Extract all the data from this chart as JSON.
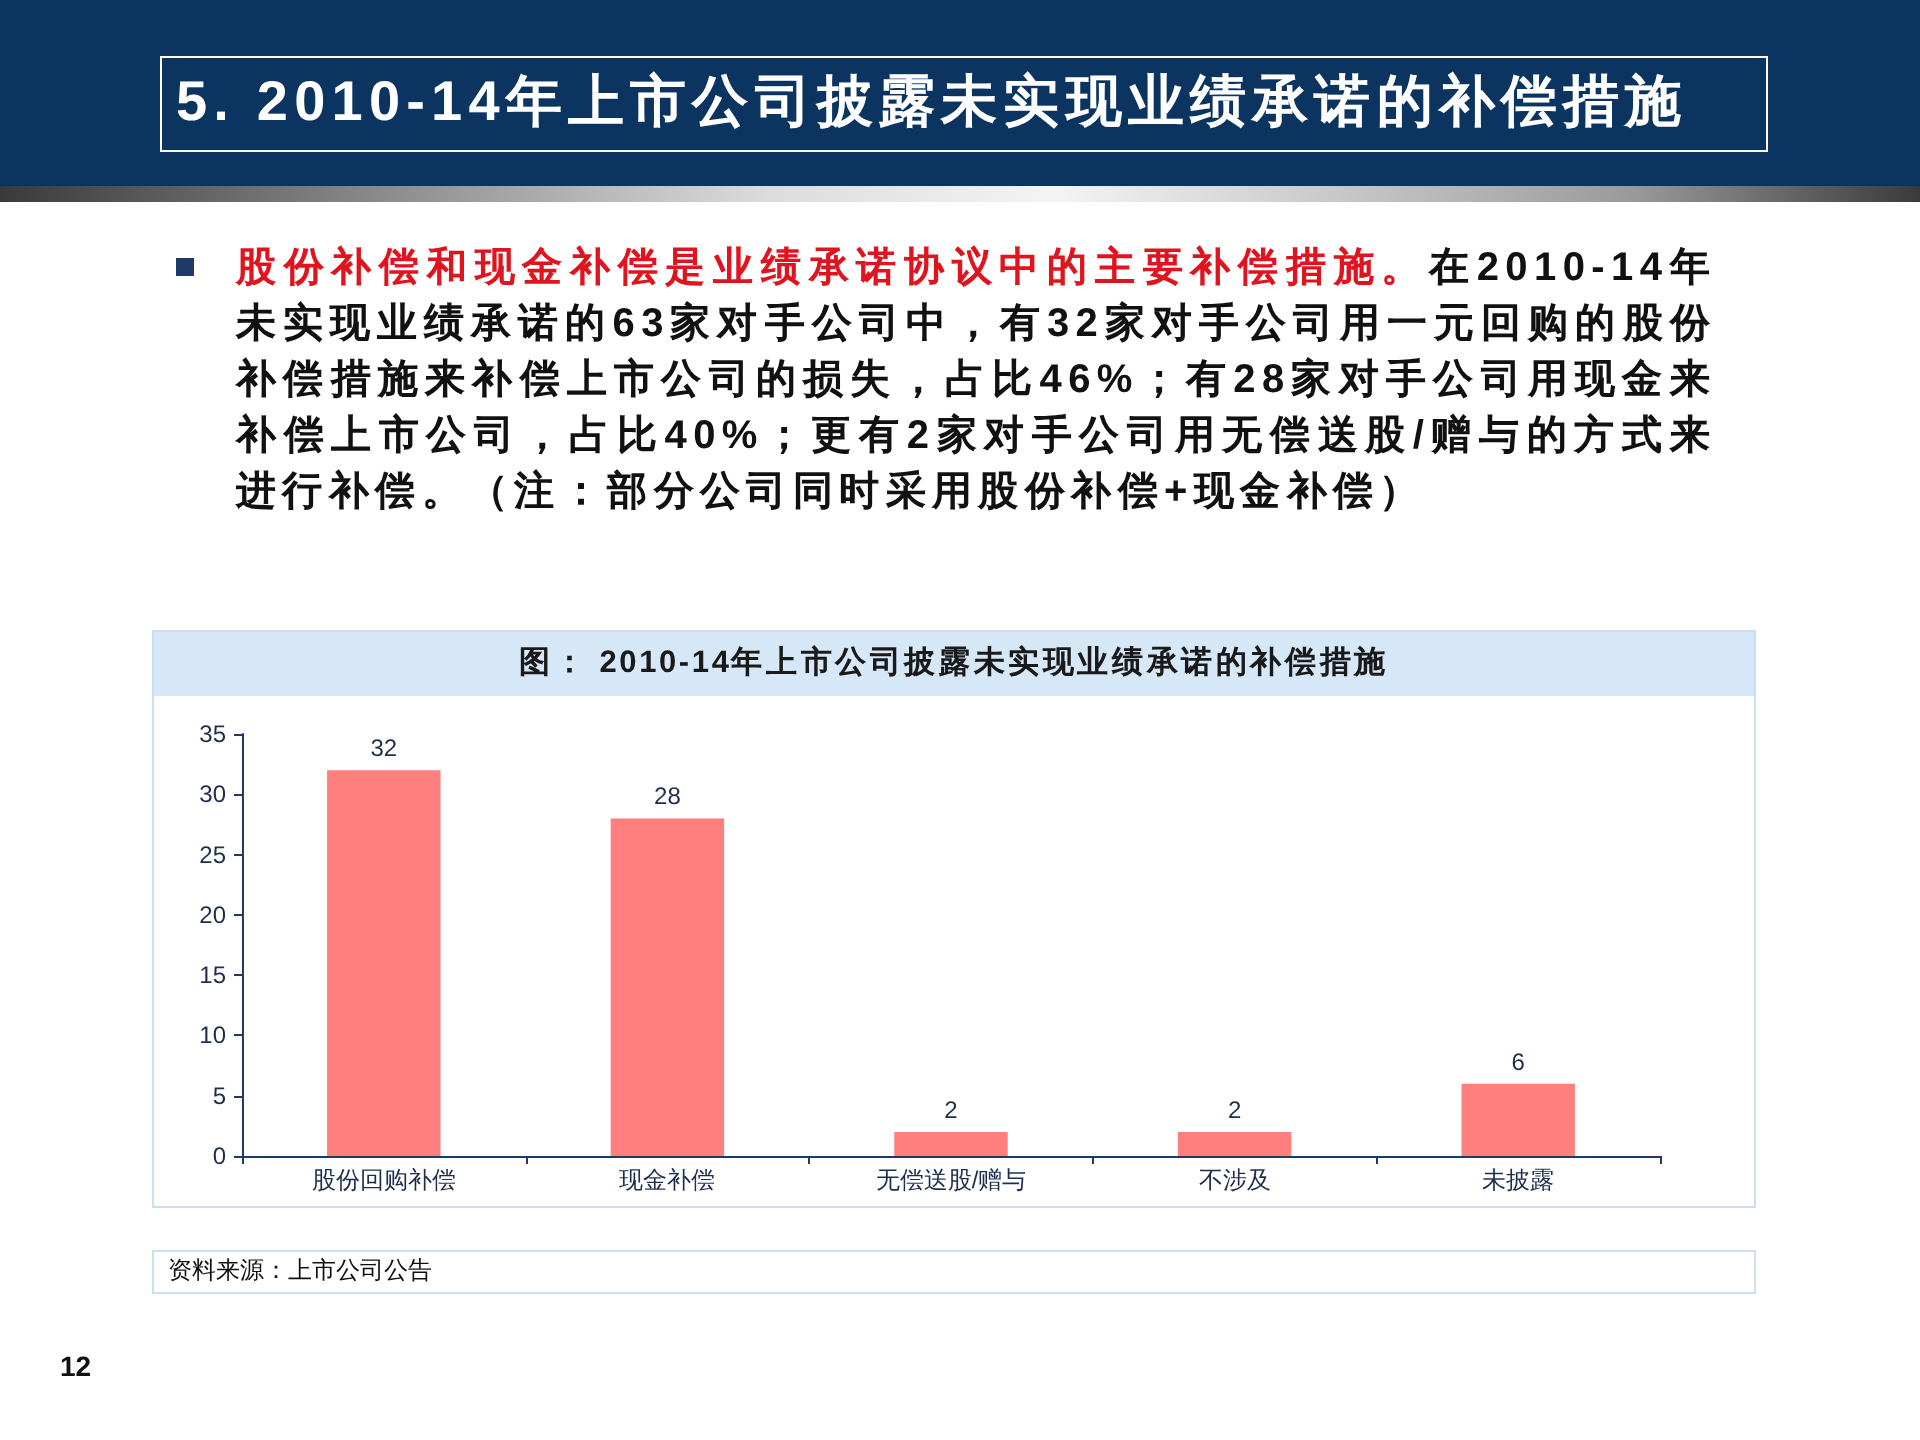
{
  "chart_data": {
    "type": "bar",
    "title": "5. 2010-14年上市公司披露未实现业绩承诺的补偿措施",
    "subtitle": "图： 2010-14年上市公司披露未实现业绩承诺的补偿措施",
    "categories": [
      "股份回购补偿",
      "现金补偿",
      "无偿送股/赠与",
      "不涉及",
      "未披露"
    ],
    "values": [
      32,
      28,
      2,
      2,
      6
    ],
    "color": "#ff7f7f",
    "ylim": [
      0,
      35
    ],
    "yticks": [
      0,
      5,
      10,
      15,
      20,
      25,
      30,
      35
    ],
    "grid": false,
    "data_labels": true,
    "annotations": [
      "股份补偿和现金补偿是业绩承诺协议中的主要补偿措施。",
      "在2010-14年未实现业绩承诺的63家对手公司中，有32家对手公司用一元回购的股份补偿措施来补偿上市公司的损失，占比46%；有28家对手公司用现金来补偿上市公司，占比40%；更有2家对手公司用无偿送股/赠与的方式来进行补偿。（注：部分公司同时采用股份补偿+现金补偿）",
      "资料来源：上市公司公告",
      "12"
    ]
  }
}
